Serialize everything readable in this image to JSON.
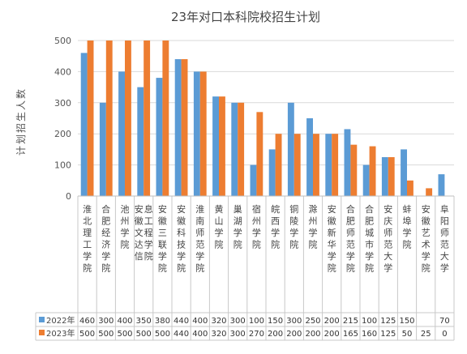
{
  "chart_data": {
    "type": "bar",
    "title": "23年对口本科院校招生计划",
    "ylabel": "计划招生人数",
    "xlabel": "",
    "ylim": [
      0,
      500
    ],
    "yticks": [
      0,
      100,
      200,
      300,
      400,
      500
    ],
    "grid": true,
    "legend": "bottom-left table",
    "categories": [
      "淮北理工学院",
      "合肥经济学院",
      "池州学院",
      "安徽文达信息工程学院",
      "安徽三联学院",
      "安徽科技学院",
      "淮南师范学院",
      "黄山学院",
      "巢湖学院",
      "宿州学院",
      "皖西学院",
      "铜陵学院",
      "滁州学院",
      "安徽新华学院",
      "合肥师范学院",
      "合肥城市学院",
      "安庆师范大学",
      "蚌埠学院",
      "安徽艺术学院",
      "阜阳师范大学"
    ],
    "series": [
      {
        "name": "2022年",
        "color": "#5B9BD5",
        "values": [
          460,
          300,
          400,
          350,
          380,
          440,
          400,
          320,
          300,
          100,
          150,
          300,
          250,
          200,
          215,
          100,
          125,
          150,
          null,
          70
        ],
        "labels": [
          "460",
          "300",
          "400",
          "350",
          "380",
          "440",
          "400",
          "320",
          "300",
          "100",
          "150",
          "300",
          "250",
          "200",
          "215",
          "100",
          "125",
          "150",
          "",
          "70"
        ]
      },
      {
        "name": "2023年",
        "color": "#ED7D31",
        "values": [
          500,
          500,
          500,
          500,
          500,
          440,
          400,
          320,
          300,
          270,
          200,
          200,
          200,
          200,
          165,
          160,
          125,
          50,
          25,
          0
        ],
        "labels": [
          "500",
          "500",
          "500",
          "500",
          "500",
          "440",
          "400",
          "320",
          "300",
          "270",
          "200",
          "200",
          "200",
          "200",
          "165",
          "160",
          "125",
          "50",
          "25",
          "0"
        ]
      }
    ]
  }
}
